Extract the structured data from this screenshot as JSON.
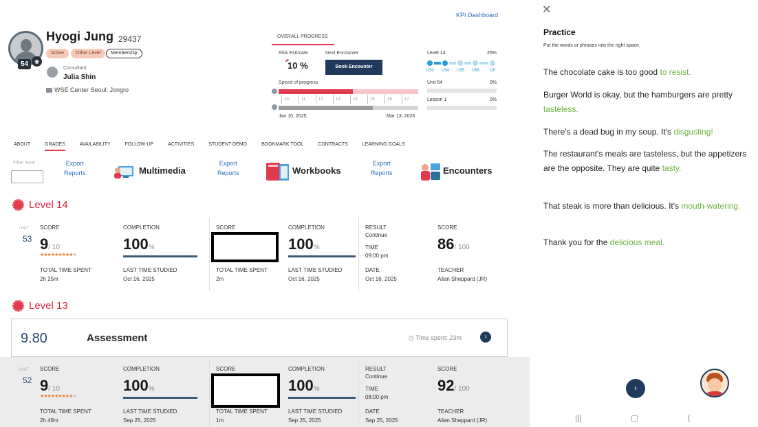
{
  "header": {
    "kpi_link": "KPI Dashboard"
  },
  "student": {
    "name": "Hyogi Jung",
    "id": "29437",
    "level_badge": "54",
    "chips": [
      "Active",
      "Other Level",
      "Membership"
    ],
    "consultant_label": "Consultant:",
    "consultant_name": "Julia Shin",
    "center": "WSE Center Seoul: Jongro"
  },
  "overall_progress": {
    "tab_label": "OVERALL PROGRESS",
    "risk_label": "Risk Estimate",
    "risk_value": "10 %",
    "next_label": "Next Encounter",
    "book_button": "Book Encounter",
    "speed_label": "Speed of progress",
    "ticks": [
      "10",
      "11",
      "12",
      "13",
      "14",
      "15",
      "16",
      "17"
    ],
    "start_date": "Jan 10, 2025",
    "end_date": "Mar 13, 2026",
    "level_label": "Level 14",
    "level_pct": "25%",
    "units": [
      "U53",
      "U54",
      "U55",
      "U56",
      "CP"
    ],
    "unit_label": "Unit 54",
    "unit_pct": "0%",
    "lesson_label": "Lesson 1",
    "lesson_pct": "0%"
  },
  "nav": {
    "tabs": [
      "ABOUT",
      "GRADES",
      "AVAILABILITY",
      "FOLLOW-UP",
      "ACTIVITIES",
      "STUDENT DEMO",
      "BOOKMARK TOOL",
      "CONTRACTS",
      "LEARNING GOALS"
    ],
    "active_tab": "GRADES"
  },
  "filters": {
    "filter_label": "Filter level",
    "export_line1": "Export",
    "export_line2": "Reports",
    "multimedia": "Multimedia",
    "workbooks": "Workbooks",
    "encounters": "Encounters"
  },
  "levels": [
    {
      "title": "Level 14",
      "unit_label": "UNIT",
      "unit": "53",
      "mm_score": "9",
      "mm_score_max": "/ 10",
      "stars_full": "★★★★★★★★★",
      "stars_empty": "★",
      "mm_completion": "100",
      "mm_time_label": "TOTAL TIME SPENT",
      "mm_time": "2h 25m",
      "mm_last_label": "LAST TIME STUDIED",
      "mm_last": "Oct 16, 2025",
      "wb_completion": "100",
      "wb_time": "2m",
      "wb_last": "Oct 16, 2025",
      "result_label": "RESULT",
      "result": "Continue",
      "time_label": "TIME",
      "time": "09:00 pm",
      "date_label": "DATE",
      "date": "Oct 16, 2025",
      "enc_score": "86",
      "enc_score_max": "/ 100",
      "teacher_label": "TEACHER",
      "teacher": "Allan Sheppard (JR)"
    },
    {
      "title": "Level 13",
      "assessment_score": "9.80",
      "assessment_title": "Assessment",
      "assessment_time": "Time spent: 23m",
      "unit_label": "UNIT",
      "unit": "52",
      "mm_score": "9",
      "mm_score_max": "/ 10",
      "stars_full": "★★★★★★★★★",
      "stars_empty": "★",
      "mm_completion": "100",
      "mm_time_label": "TOTAL TIME SPENT",
      "mm_time": "2h 48m",
      "mm_last_label": "LAST TIME STUDIED",
      "mm_last": "Sep 25, 2025",
      "wb_completion": "100",
      "wb_time": "1m",
      "wb_last": "Sep 25, 2025",
      "result_label": "RESULT",
      "result": "Continue",
      "time_label": "TIME",
      "time": "08:00 pm",
      "date_label": "DATE",
      "date": "Sep 25, 2025",
      "enc_score": "92",
      "enc_score_max": "/ 100",
      "teacher_label": "TEACHER",
      "teacher": "Allan Sheppard (JR)"
    }
  ],
  "labels": {
    "score": "SCORE",
    "completion": "COMPLETION",
    "pct": "%"
  },
  "practice": {
    "title": "Practice",
    "instruction": "Put the words or phrases into the right space.",
    "sentences": [
      {
        "before": "The chocolate cake is too good ",
        "answer": "to resist.",
        "after": ""
      },
      {
        "before": "Burger World is okay, but the hamburgers are pretty ",
        "answer": "tasteless.",
        "after": ""
      },
      {
        "before": "There's a dead bug in my soup. It's ",
        "answer": "disgusting!",
        "after": ""
      },
      {
        "before": "The restaurant's meals are tasteless, but the appetizers are the opposite. They are quite ",
        "answer": "tasty.",
        "after": ""
      },
      {
        "before": "That steak is more than delicious. It's ",
        "answer": "mouth-watering.",
        "after": ""
      },
      {
        "before": "Thank you for the ",
        "answer": "delicious meal.",
        "after": ""
      }
    ]
  },
  "colors": {
    "accent_red": "#e23a4d",
    "navy": "#1f3a5a",
    "answer_green": "#6cb33f",
    "link_blue": "#2a6ebd"
  }
}
